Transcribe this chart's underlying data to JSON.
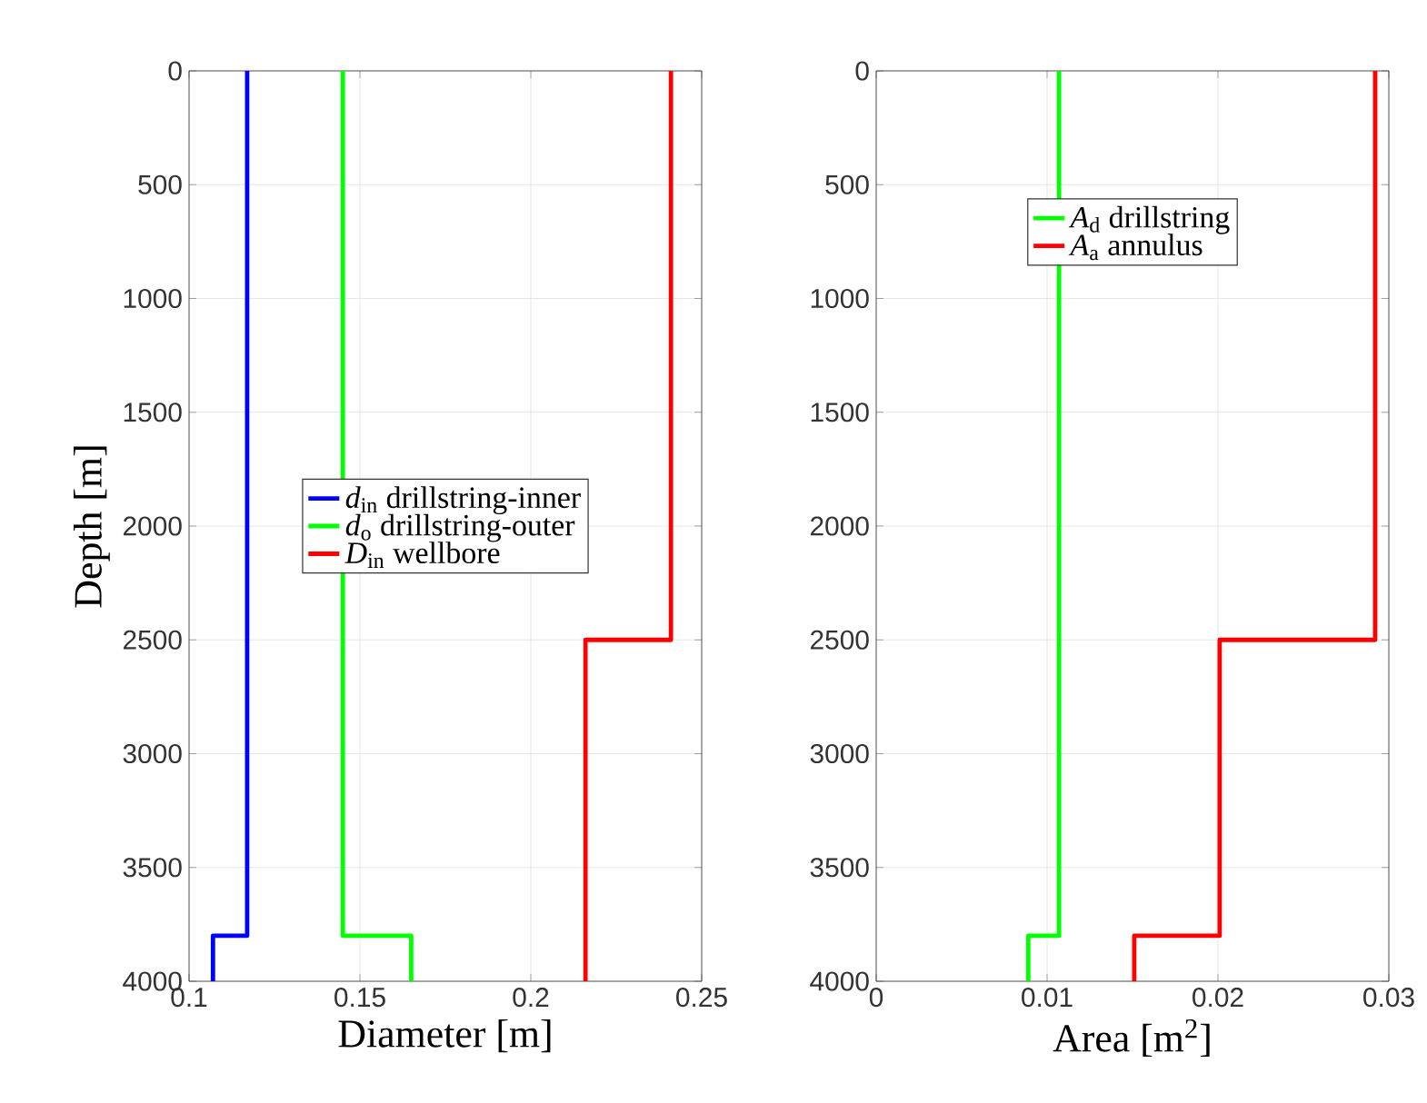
{
  "chart_data": [
    {
      "type": "line",
      "xlabel": "Diameter [m]",
      "ylabel": "Depth [m]",
      "xlim": [
        0.1,
        0.25
      ],
      "xticks": [
        0.1,
        0.15,
        0.2,
        0.25
      ],
      "ylim": [
        4000,
        0
      ],
      "yticks": [
        0,
        500,
        1000,
        1500,
        2000,
        2500,
        3000,
        3500,
        4000
      ],
      "grid": true,
      "legend": "center",
      "series": [
        {
          "name": "*d*$_{in}$ drillstring-inner",
          "color": "#0000ff",
          "x": [
            0.117,
            0.117,
            0.107,
            0.107
          ],
          "values": [
            0,
            3800,
            3800,
            4000
          ]
        },
        {
          "name": "*d*$_{o}$ drillstring-outer",
          "color": "#00ff00",
          "x": [
            0.145,
            0.145,
            0.165,
            0.165
          ],
          "values": [
            0,
            3800,
            3800,
            4000
          ]
        },
        {
          "name": "*D*$_{in}$ wellbore",
          "color": "#ff0000",
          "x": [
            0.241,
            0.241,
            0.216,
            0.216
          ],
          "values": [
            0,
            2500,
            2500,
            4000
          ]
        }
      ]
    },
    {
      "type": "line",
      "xlabel": "Area [m$^{2}$]",
      "xlim": [
        0,
        0.03
      ],
      "xticks": [
        0,
        0.01,
        0.02,
        0.03
      ],
      "ylim": [
        4000,
        0
      ],
      "yticks": [
        0,
        500,
        1000,
        1500,
        2000,
        2500,
        3000,
        3500,
        4000
      ],
      "grid": true,
      "legend": "top",
      "series": [
        {
          "name": "*A*$_{d}$ drillstring",
          "color": "#00ff00",
          "x": [
            0.0107,
            0.0107,
            0.0089,
            0.0089
          ],
          "values": [
            0,
            3800,
            3800,
            4000
          ]
        },
        {
          "name": "*A*$_{a}$ annulus",
          "color": "#ff0000",
          "x": [
            0.0292,
            0.0292,
            0.0201,
            0.0201,
            0.0151,
            0.0151
          ],
          "values": [
            0,
            2500,
            2500,
            3800,
            3800,
            4000
          ]
        }
      ]
    }
  ]
}
